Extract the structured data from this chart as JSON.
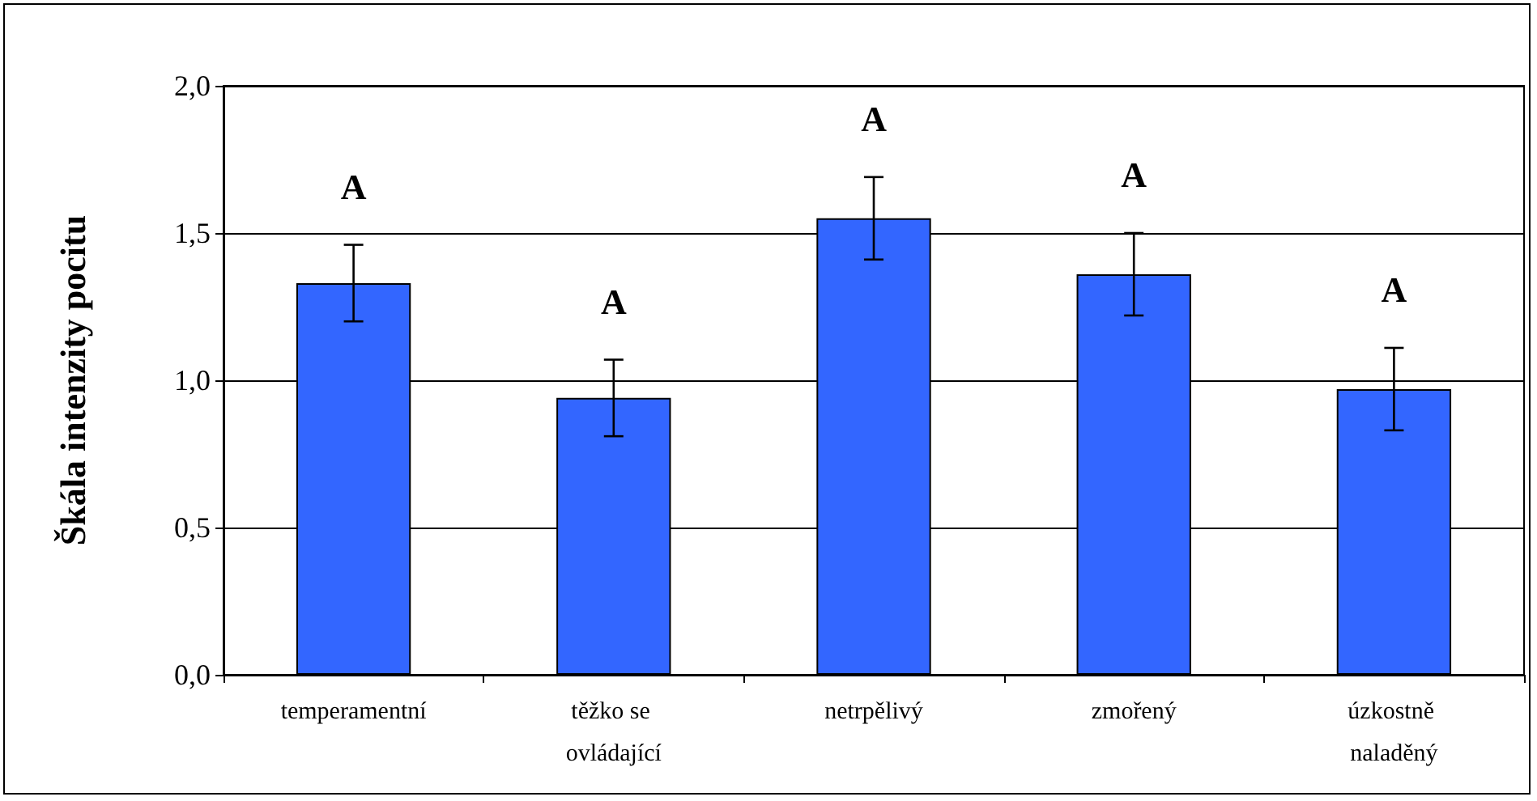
{
  "chart_data": {
    "type": "bar",
    "ylabel": "Škála intenzity pocitu",
    "categories": [
      "temperamentní",
      "těžko se ovládající",
      "netrpělivý",
      "zmořený",
      "úzkostně naladěný"
    ],
    "values": [
      1.33,
      0.94,
      1.55,
      1.36,
      0.97
    ],
    "errors": [
      0.13,
      0.13,
      0.14,
      0.14,
      0.14
    ],
    "color": "#3366ff",
    "ylim": [
      0,
      2
    ],
    "yticks": [
      {
        "value": 0,
        "label": "0,0"
      },
      {
        "value": 0.5,
        "label": "0,5"
      },
      {
        "value": 1,
        "label": "1,0"
      },
      {
        "value": 1.5,
        "label": "1,5"
      },
      {
        "value": 2,
        "label": "2,0"
      }
    ],
    "grid": "y",
    "annotations": [
      "A",
      "A",
      "A",
      "A",
      "A"
    ]
  }
}
